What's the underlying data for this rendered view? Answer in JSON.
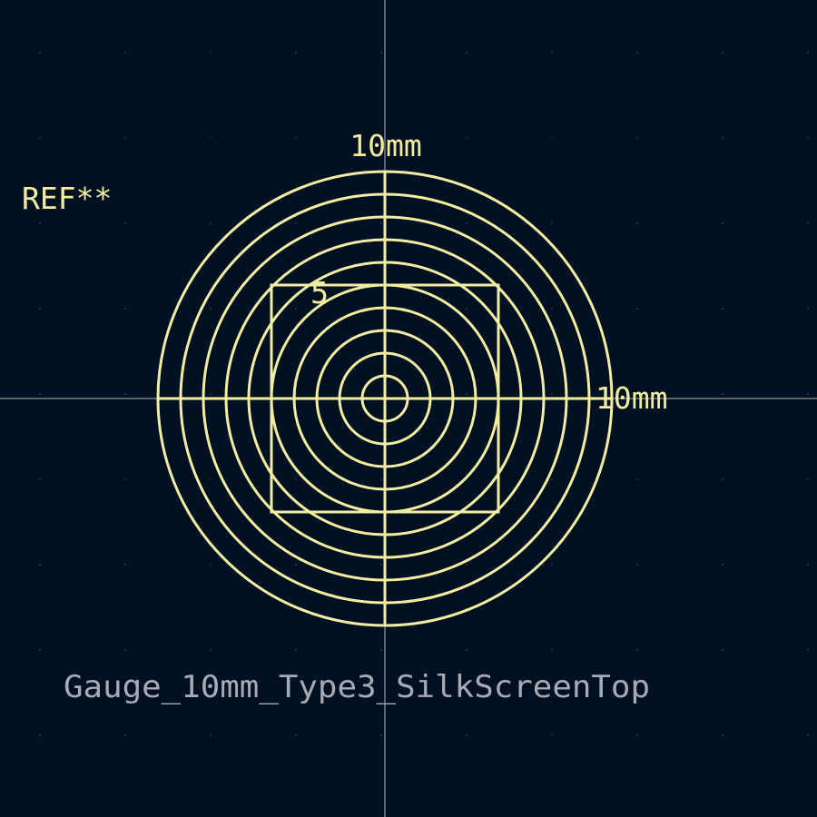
{
  "footprint": {
    "reference": "REF**",
    "value": "Gauge_10mm_Type3_SilkScreenTop",
    "layer": "F.SilkS"
  },
  "gauge": {
    "top_label": "10mm",
    "right_label": "10mm",
    "square_label": "5",
    "circle_radii_mm": [
      1,
      2,
      3,
      4,
      5,
      6,
      7,
      8,
      9,
      10
    ],
    "square_size_mm": 10
  },
  "colors": {
    "background": "#001023",
    "silkscreen": "#F2EDA1",
    "value_text": "#A8AAB4",
    "crosshair": "#C8C8C8",
    "grid_dot": "#2A3850"
  },
  "view": {
    "grid": true
  }
}
